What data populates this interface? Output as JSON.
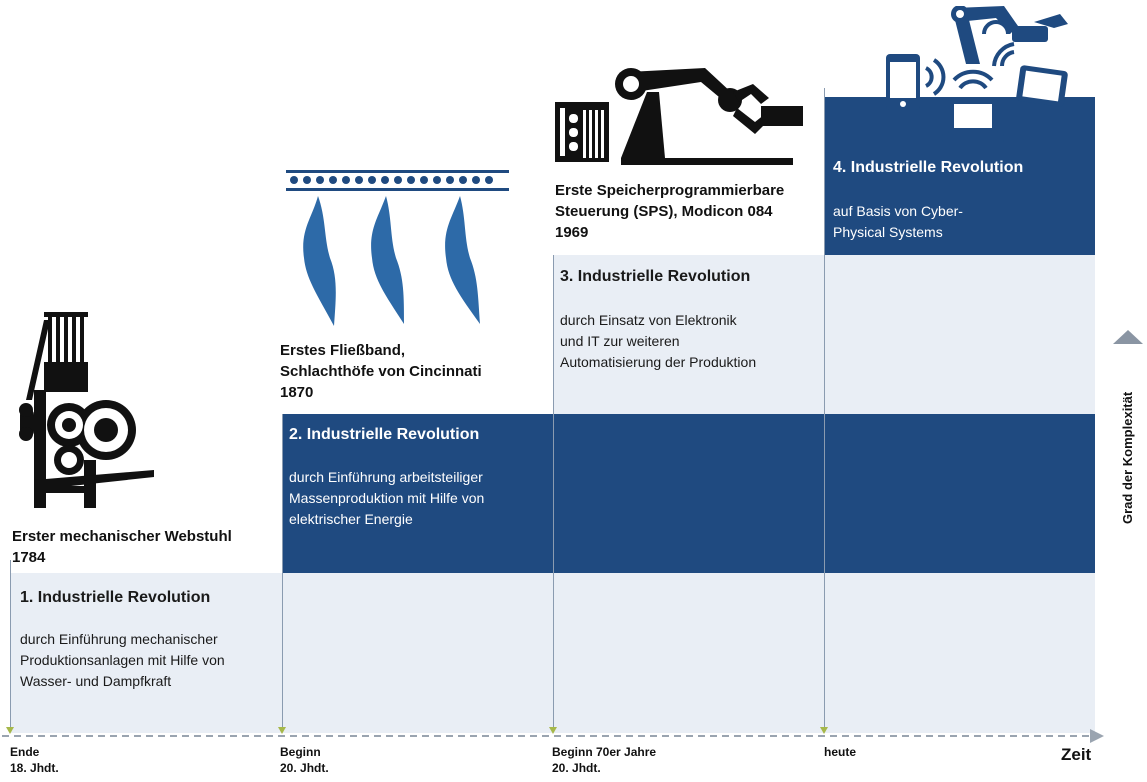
{
  "colors": {
    "dark_blue": "#1f4a80",
    "light_band": "#e9eef5",
    "icon_blue": "#2d6aa8",
    "arrow_green": "#a6b84a",
    "axis_gray": "#9aa4b0"
  },
  "milestones": [
    {
      "text": "Erster mechanischer Webstuhl\n1784",
      "icon": "loom-icon"
    },
    {
      "text": "Erstes Fließband,\nSchlachthöfe von Cincinnati\n1870",
      "icon": "conveyor-icon"
    },
    {
      "text": "Erste Speicherprogrammierbare\nSteuerung (SPS), Modicon 084\n1969",
      "icon": "robot-arm-icon"
    },
    {
      "icon": "connected-devices-icon"
    }
  ],
  "revolutions": [
    {
      "title": "1. Industrielle Revolution",
      "description": "durch Einführung mechanischer\nProduktionsanlagen mit Hilfe von\nWasser- und Dampfkraft"
    },
    {
      "title": "2. Industrielle Revolution",
      "description": "durch Einführung arbeitsteiliger\nMassenproduktion mit Hilfe von\nelektrischer Energie"
    },
    {
      "title": "3. Industrielle Revolution",
      "description": "durch Einsatz von Elektronik\nund IT zur weiteren\nAutomatisierung der Produktion"
    },
    {
      "title": "4. Industrielle Revolution",
      "description": "auf Basis von Cyber-\nPhysical Systems"
    }
  ],
  "time_axis": {
    "label": "Zeit",
    "ticks": [
      "Ende\n18. Jhdt.",
      "Beginn\n20. Jhdt.",
      "Beginn 70er Jahre\n20. Jhdt.",
      "heute"
    ]
  },
  "y_axis": {
    "label": "Grad der Komplexität"
  }
}
